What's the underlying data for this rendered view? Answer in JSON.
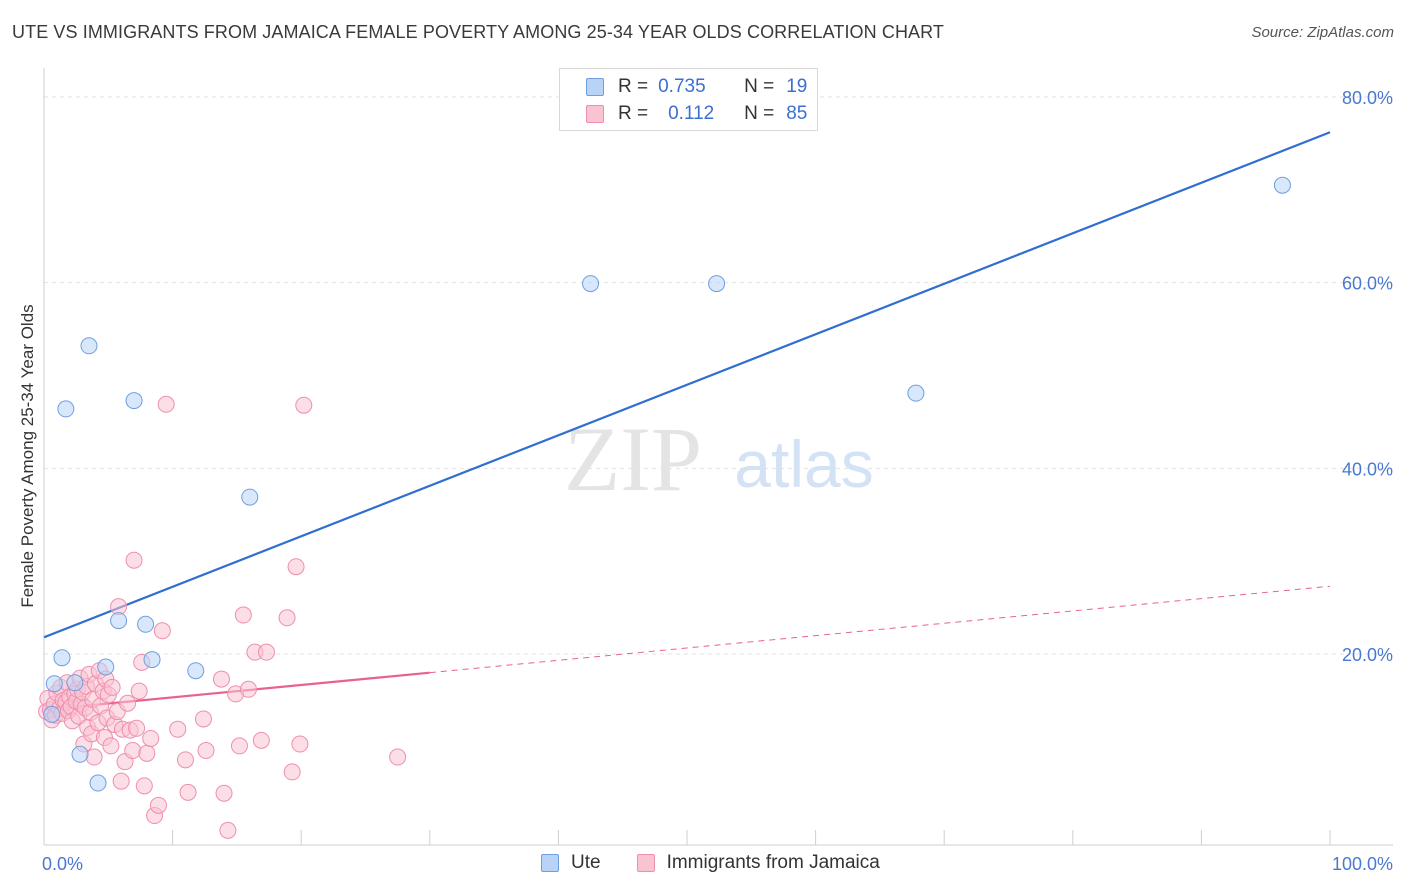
{
  "title": "UTE VS IMMIGRANTS FROM JAMAICA FEMALE POVERTY AMONG 25-34 YEAR OLDS CORRELATION CHART",
  "source": "Source: ZipAtlas.com",
  "watermark": {
    "zip": "ZIP",
    "atlas": "atlas"
  },
  "legend": {
    "rows": [
      {
        "r_label": "R =",
        "r_value": "0.735",
        "n_label": "N =",
        "n_value": "19",
        "fill": "#b8d3f5",
        "stroke": "#6f9fe0"
      },
      {
        "r_label": "R =",
        "r_value": "0.112",
        "n_label": "N =",
        "n_value": "85",
        "fill": "#f9c3d2",
        "stroke": "#ee8fae"
      }
    ]
  },
  "chart_data": {
    "type": "scatter",
    "title": "UTE VS IMMIGRANTS FROM JAMAICA FEMALE POVERTY AMONG 25-34 YEAR OLDS CORRELATION CHART",
    "xlabel": "",
    "ylabel": "Female Poverty Among 25-34 Year Olds",
    "xlim": [
      0,
      100
    ],
    "ylim": [
      0,
      80
    ],
    "x_tick_labels": [
      "0.0%",
      "100.0%"
    ],
    "y_ticks": [
      20,
      40,
      60,
      80
    ],
    "y_tick_labels": [
      "20.0%",
      "40.0%",
      "60.0%",
      "80.0%"
    ],
    "grid": true,
    "legend_position": "top-center",
    "series": [
      {
        "name": "Ute",
        "color": "#6f9fe0",
        "fill": "#b8d3f5",
        "points": [
          [
            0.6,
            13.5
          ],
          [
            0.8,
            16.8
          ],
          [
            1.4,
            19.6
          ],
          [
            1.7,
            46.4
          ],
          [
            2.4,
            16.9
          ],
          [
            2.8,
            9.2
          ],
          [
            3.5,
            53.2
          ],
          [
            4.2,
            6.1
          ],
          [
            4.8,
            18.6
          ],
          [
            5.8,
            23.6
          ],
          [
            7.0,
            47.3
          ],
          [
            7.9,
            23.2
          ],
          [
            8.4,
            19.4
          ],
          [
            11.8,
            18.2
          ],
          [
            16.0,
            36.9
          ],
          [
            42.5,
            59.9
          ],
          [
            52.3,
            59.9
          ],
          [
            67.8,
            48.1
          ],
          [
            96.3,
            70.5
          ]
        ],
        "trend": {
          "x": [
            0,
            100
          ],
          "y": [
            21.8,
            76.2
          ],
          "dashed_from": null
        }
      },
      {
        "name": "Immigrants from Jamaica",
        "color": "#ee8fae",
        "fill": "#f9c3d2",
        "points": [
          [
            0.2,
            13.8
          ],
          [
            0.3,
            15.2
          ],
          [
            0.5,
            14.0
          ],
          [
            0.6,
            12.9
          ],
          [
            0.8,
            14.6
          ],
          [
            0.9,
            13.4
          ],
          [
            1.0,
            15.8
          ],
          [
            1.2,
            14.1
          ],
          [
            1.3,
            16.4
          ],
          [
            1.4,
            13.6
          ],
          [
            1.5,
            15.0
          ],
          [
            1.7,
            14.8
          ],
          [
            1.8,
            16.9
          ],
          [
            1.9,
            13.9
          ],
          [
            2.0,
            15.4
          ],
          [
            2.1,
            14.3
          ],
          [
            2.2,
            12.8
          ],
          [
            2.4,
            15.7
          ],
          [
            2.5,
            14.9
          ],
          [
            2.6,
            16.2
          ],
          [
            2.7,
            13.3
          ],
          [
            2.8,
            17.4
          ],
          [
            2.9,
            14.6
          ],
          [
            3.0,
            15.9
          ],
          [
            3.1,
            10.3
          ],
          [
            3.2,
            14.2
          ],
          [
            3.3,
            16.5
          ],
          [
            3.4,
            12.1
          ],
          [
            3.5,
            17.8
          ],
          [
            3.6,
            13.7
          ],
          [
            3.7,
            11.4
          ],
          [
            3.8,
            15.1
          ],
          [
            3.9,
            8.9
          ],
          [
            4.0,
            16.8
          ],
          [
            4.2,
            12.6
          ],
          [
            4.3,
            18.2
          ],
          [
            4.4,
            14.4
          ],
          [
            4.6,
            16.0
          ],
          [
            4.7,
            11.0
          ],
          [
            4.8,
            17.3
          ],
          [
            4.9,
            13.1
          ],
          [
            5.0,
            15.6
          ],
          [
            5.2,
            10.1
          ],
          [
            5.3,
            16.4
          ],
          [
            5.5,
            12.4
          ],
          [
            5.7,
            13.8
          ],
          [
            5.8,
            25.1
          ],
          [
            6.0,
            6.3
          ],
          [
            6.1,
            11.9
          ],
          [
            6.3,
            8.4
          ],
          [
            6.5,
            14.7
          ],
          [
            6.7,
            11.8
          ],
          [
            6.9,
            9.6
          ],
          [
            7.0,
            30.1
          ],
          [
            7.2,
            12.0
          ],
          [
            7.4,
            16.0
          ],
          [
            7.6,
            19.1
          ],
          [
            7.8,
            5.8
          ],
          [
            8.0,
            9.3
          ],
          [
            8.3,
            10.9
          ],
          [
            8.6,
            2.6
          ],
          [
            8.9,
            3.7
          ],
          [
            9.2,
            22.5
          ],
          [
            9.5,
            46.9
          ],
          [
            10.4,
            11.9
          ],
          [
            11.0,
            8.6
          ],
          [
            11.2,
            5.1
          ],
          [
            12.4,
            13.0
          ],
          [
            12.6,
            9.6
          ],
          [
            13.8,
            17.3
          ],
          [
            14.0,
            5.0
          ],
          [
            14.3,
            1.0
          ],
          [
            14.9,
            15.7
          ],
          [
            15.2,
            10.1
          ],
          [
            15.5,
            24.2
          ],
          [
            15.9,
            16.2
          ],
          [
            16.4,
            20.2
          ],
          [
            16.9,
            10.7
          ],
          [
            17.3,
            20.2
          ],
          [
            18.9,
            23.9
          ],
          [
            19.3,
            7.3
          ],
          [
            19.6,
            29.4
          ],
          [
            19.9,
            10.3
          ],
          [
            20.2,
            46.8
          ],
          [
            27.5,
            8.9
          ]
        ],
        "trend": {
          "x": [
            0,
            100
          ],
          "y": [
            14.0,
            27.3
          ],
          "dashed_from": 30
        }
      }
    ]
  },
  "bottom_legend": [
    {
      "label": "Ute",
      "fill": "#b8d3f5",
      "stroke": "#6f9fe0"
    },
    {
      "label": "Immigrants from Jamaica",
      "fill": "#f9c3d2",
      "stroke": "#ee8fae"
    }
  ]
}
